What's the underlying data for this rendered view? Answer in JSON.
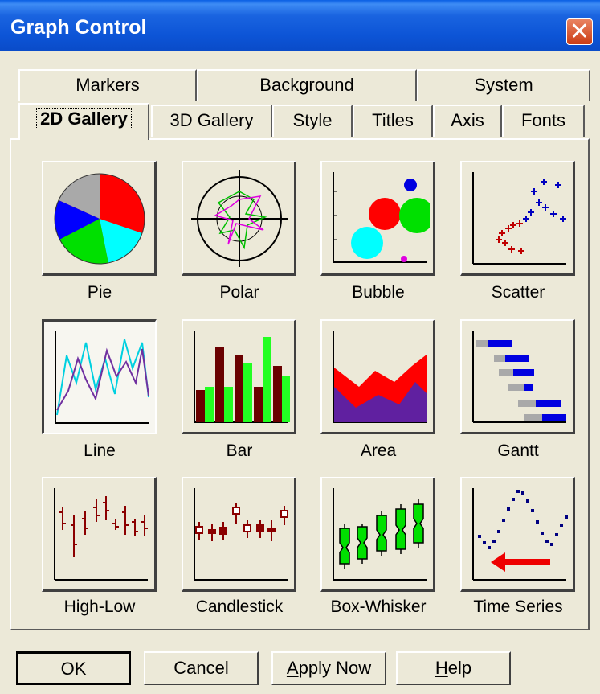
{
  "window": {
    "title": "Graph Control",
    "close_glyph": "✕"
  },
  "tabs_back": [
    "Markers",
    "Background",
    "System"
  ],
  "tabs_front": [
    "2D Gallery",
    "3D Gallery",
    "Style",
    "Titles",
    "Axis",
    "Fonts"
  ],
  "active_tab": "2D Gallery",
  "gallery": [
    {
      "label": "Pie",
      "icon": "pie-chart-icon"
    },
    {
      "label": "Polar",
      "icon": "polar-chart-icon"
    },
    {
      "label": "Bubble",
      "icon": "bubble-chart-icon"
    },
    {
      "label": "Scatter",
      "icon": "scatter-chart-icon"
    },
    {
      "label": "Line",
      "icon": "line-chart-icon",
      "selected": true
    },
    {
      "label": "Bar",
      "icon": "bar-chart-icon"
    },
    {
      "label": "Area",
      "icon": "area-chart-icon"
    },
    {
      "label": "Gantt",
      "icon": "gantt-chart-icon"
    },
    {
      "label": "High-Low",
      "icon": "high-low-chart-icon"
    },
    {
      "label": "Candlestick",
      "icon": "candlestick-chart-icon"
    },
    {
      "label": "Box-Whisker",
      "icon": "box-whisker-chart-icon"
    },
    {
      "label": "Time Series",
      "icon": "time-series-chart-icon"
    }
  ],
  "buttons": {
    "ok": "OK",
    "cancel": "Cancel",
    "apply_prefix": "",
    "apply_mnemonic": "A",
    "apply_rest": "pply Now",
    "help_mnemonic": "H",
    "help_rest": "elp"
  },
  "colors": {
    "titlebar": "#0a4bc8",
    "face": "#ece9d8",
    "close": "#cc3c14"
  }
}
